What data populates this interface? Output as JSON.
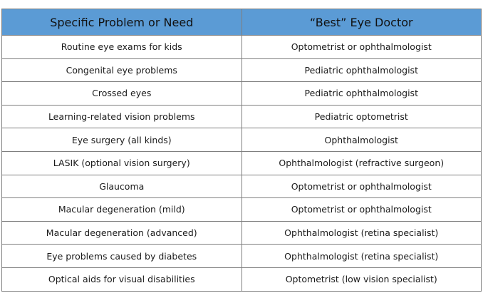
{
  "table": {
    "header": [
      "Specific Problem or Need",
      "“Best” Eye Doctor"
    ],
    "rows": [
      [
        "Routine eye exams for kids",
        "Optometrist or ophthalmologist"
      ],
      [
        "Congenital eye problems",
        "Pediatric ophthalmologist"
      ],
      [
        "Crossed eyes",
        "Pediatric ophthalmologist"
      ],
      [
        "Learning-related vision problems",
        "Pediatric optometrist"
      ],
      [
        "Eye surgery (all kinds)",
        "Ophthalmologist"
      ],
      [
        "LASIK (optional vision surgery)",
        "Ophthalmologist (refractive surgeon)"
      ],
      [
        "Glaucoma",
        "Optometrist or ophthalmologist"
      ],
      [
        "Macular degeneration (mild)",
        "Optometrist or ophthalmologist"
      ],
      [
        "Macular degeneration (advanced)",
        "Ophthalmologist (retina specialist)"
      ],
      [
        "Eye problems caused by diabetes",
        "Ophthalmologist (retina specialist)"
      ],
      [
        "Optical aids for visual disabilities",
        "Optometrist (low vision specialist)"
      ]
    ]
  }
}
